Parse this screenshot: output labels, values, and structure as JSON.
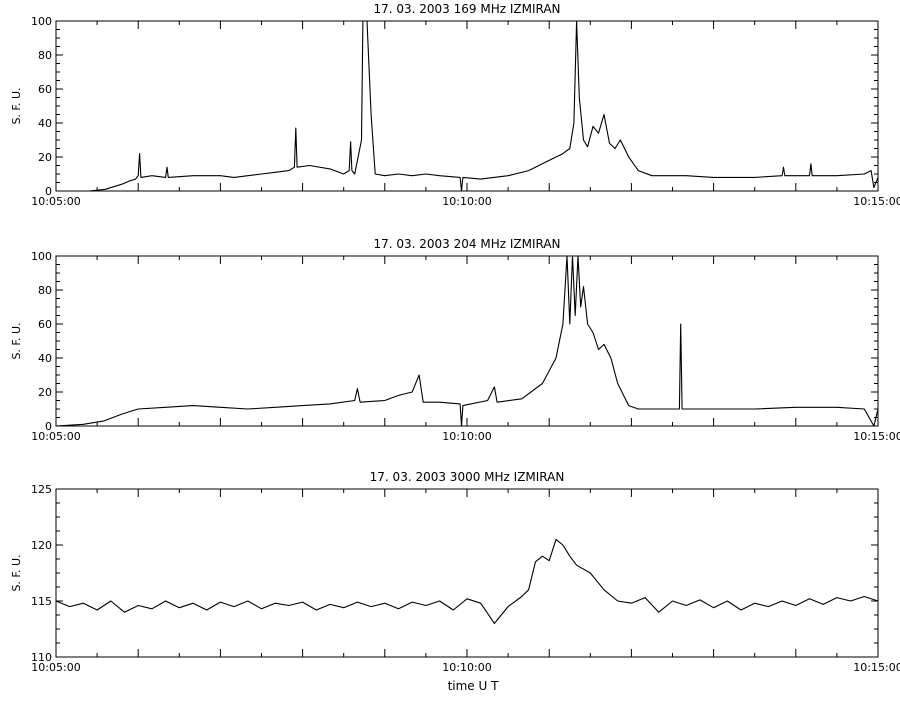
{
  "page": {
    "background": "#ffffff",
    "ink": "#000000",
    "xaxis_title": "time  U T"
  },
  "chart_data": [
    {
      "type": "line",
      "title": "17.  03.  2003    169  MHz     IZMIRAN",
      "ylabel": "S. F. U.",
      "xlabel": "",
      "x_range": [
        "10:05:00",
        "10:15:00"
      ],
      "x_ticks": [
        "10:05:00",
        "10:10:00",
        "10:15:00"
      ],
      "ylim": [
        0,
        100
      ],
      "y_ticks": [
        0,
        20,
        40,
        60,
        80,
        100
      ],
      "grid": false,
      "series": [
        {
          "points": [
            [
              "10:05:00",
              0
            ],
            [
              "10:05:24",
              0
            ],
            [
              "10:05:36",
              1
            ],
            [
              "10:05:48",
              4
            ],
            [
              "10:05:54",
              6
            ],
            [
              "10:05:58",
              7
            ],
            [
              "10:06:00",
              9
            ],
            [
              "10:06:01",
              22
            ],
            [
              "10:06:02",
              8
            ],
            [
              "10:06:10",
              9
            ],
            [
              "10:06:20",
              8
            ],
            [
              "10:06:21",
              14
            ],
            [
              "10:06:22",
              8
            ],
            [
              "10:06:40",
              9
            ],
            [
              "10:07:00",
              9
            ],
            [
              "10:07:10",
              8
            ],
            [
              "10:07:20",
              9
            ],
            [
              "10:07:30",
              10
            ],
            [
              "10:07:40",
              11
            ],
            [
              "10:07:50",
              12
            ],
            [
              "10:07:54",
              14
            ],
            [
              "10:07:55",
              37
            ],
            [
              "10:07:56",
              14
            ],
            [
              "10:08:05",
              15
            ],
            [
              "10:08:20",
              13
            ],
            [
              "10:08:30",
              10
            ],
            [
              "10:08:34",
              12
            ],
            [
              "10:08:35",
              29
            ],
            [
              "10:08:36",
              12
            ],
            [
              "10:08:38",
              10
            ],
            [
              "10:08:43",
              30
            ],
            [
              "10:08:44",
              100
            ],
            [
              "10:08:47",
              100
            ],
            [
              "10:08:50",
              45
            ],
            [
              "10:08:53",
              10
            ],
            [
              "10:09:00",
              9
            ],
            [
              "10:09:10",
              10
            ],
            [
              "10:09:20",
              9
            ],
            [
              "10:09:30",
              10
            ],
            [
              "10:09:40",
              9
            ],
            [
              "10:09:55",
              8
            ],
            [
              "10:09:56",
              0
            ],
            [
              "10:09:57",
              8
            ],
            [
              "10:10:10",
              7
            ],
            [
              "10:10:30",
              9
            ],
            [
              "10:10:45",
              12
            ],
            [
              "10:11:00",
              18
            ],
            [
              "10:11:10",
              22
            ],
            [
              "10:11:15",
              25
            ],
            [
              "10:11:18",
              40
            ],
            [
              "10:11:20",
              100
            ],
            [
              "10:11:22",
              55
            ],
            [
              "10:11:25",
              30
            ],
            [
              "10:11:28",
              26
            ],
            [
              "10:11:32",
              38
            ],
            [
              "10:11:36",
              34
            ],
            [
              "10:11:40",
              45
            ],
            [
              "10:11:44",
              28
            ],
            [
              "10:11:48",
              25
            ],
            [
              "10:11:52",
              30
            ],
            [
              "10:11:58",
              20
            ],
            [
              "10:12:05",
              12
            ],
            [
              "10:12:15",
              9
            ],
            [
              "10:12:40",
              9
            ],
            [
              "10:13:00",
              8
            ],
            [
              "10:13:30",
              8
            ],
            [
              "10:13:50",
              9
            ],
            [
              "10:13:51",
              14
            ],
            [
              "10:13:52",
              9
            ],
            [
              "10:14:10",
              9
            ],
            [
              "10:14:11",
              16
            ],
            [
              "10:14:12",
              9
            ],
            [
              "10:14:30",
              9
            ],
            [
              "10:14:50",
              10
            ],
            [
              "10:14:55",
              12
            ],
            [
              "10:14:57",
              2
            ],
            [
              "10:15:00",
              8
            ]
          ]
        }
      ]
    },
    {
      "type": "line",
      "title": "17.  03.  2003    204  MHz     IZMIRAN",
      "ylabel": "S. F. U.",
      "xlabel": "",
      "x_range": [
        "10:05:00",
        "10:15:00"
      ],
      "x_ticks": [
        "10:05:00",
        "10:10:00",
        "10:15:00"
      ],
      "ylim": [
        0,
        100
      ],
      "y_ticks": [
        0,
        20,
        40,
        60,
        80,
        100
      ],
      "grid": false,
      "series": [
        {
          "points": [
            [
              "10:05:00",
              0
            ],
            [
              "10:05:20",
              1
            ],
            [
              "10:05:35",
              3
            ],
            [
              "10:05:48",
              7
            ],
            [
              "10:06:00",
              10
            ],
            [
              "10:06:20",
              11
            ],
            [
              "10:06:40",
              12
            ],
            [
              "10:07:00",
              11
            ],
            [
              "10:07:20",
              10
            ],
            [
              "10:07:40",
              11
            ],
            [
              "10:08:00",
              12
            ],
            [
              "10:08:20",
              13
            ],
            [
              "10:08:38",
              15
            ],
            [
              "10:08:40",
              22
            ],
            [
              "10:08:42",
              14
            ],
            [
              "10:09:00",
              15
            ],
            [
              "10:09:10",
              18
            ],
            [
              "10:09:20",
              20
            ],
            [
              "10:09:25",
              30
            ],
            [
              "10:09:28",
              14
            ],
            [
              "10:09:40",
              14
            ],
            [
              "10:09:55",
              13
            ],
            [
              "10:09:56",
              0
            ],
            [
              "10:09:57",
              12
            ],
            [
              "10:10:15",
              15
            ],
            [
              "10:10:20",
              23
            ],
            [
              "10:10:22",
              14
            ],
            [
              "10:10:40",
              16
            ],
            [
              "10:10:55",
              25
            ],
            [
              "10:11:05",
              40
            ],
            [
              "10:11:10",
              60
            ],
            [
              "10:11:13",
              100
            ],
            [
              "10:11:15",
              60
            ],
            [
              "10:11:17",
              100
            ],
            [
              "10:11:19",
              65
            ],
            [
              "10:11:21",
              100
            ],
            [
              "10:11:23",
              70
            ],
            [
              "10:11:25",
              82
            ],
            [
              "10:11:28",
              60
            ],
            [
              "10:11:32",
              55
            ],
            [
              "10:11:36",
              45
            ],
            [
              "10:11:40",
              48
            ],
            [
              "10:11:45",
              40
            ],
            [
              "10:11:50",
              25
            ],
            [
              "10:11:58",
              12
            ],
            [
              "10:12:05",
              10
            ],
            [
              "10:12:20",
              10
            ],
            [
              "10:12:35",
              10
            ],
            [
              "10:12:36",
              60
            ],
            [
              "10:12:37",
              10
            ],
            [
              "10:13:00",
              10
            ],
            [
              "10:13:30",
              10
            ],
            [
              "10:14:00",
              11
            ],
            [
              "10:14:30",
              11
            ],
            [
              "10:14:50",
              10
            ],
            [
              "10:14:57",
              0
            ],
            [
              "10:15:00",
              10
            ]
          ]
        }
      ]
    },
    {
      "type": "line",
      "title": "17.  03.  2003    3000  MHz     IZMIRAN",
      "ylabel": "S. F. U.",
      "xlabel": "time  U T",
      "x_range": [
        "10:05:00",
        "10:15:00"
      ],
      "x_ticks": [
        "10:05:00",
        "10:10:00",
        "10:15:00"
      ],
      "ylim": [
        110,
        125
      ],
      "y_ticks": [
        110,
        115,
        120,
        125
      ],
      "grid": false,
      "series": [
        {
          "points": [
            [
              "10:05:00",
              115.0
            ],
            [
              "10:05:10",
              114.5
            ],
            [
              "10:05:20",
              114.8
            ],
            [
              "10:05:30",
              114.2
            ],
            [
              "10:05:40",
              115.0
            ],
            [
              "10:05:50",
              114.0
            ],
            [
              "10:06:00",
              114.6
            ],
            [
              "10:06:10",
              114.3
            ],
            [
              "10:06:20",
              115.0
            ],
            [
              "10:06:30",
              114.4
            ],
            [
              "10:06:40",
              114.8
            ],
            [
              "10:06:50",
              114.2
            ],
            [
              "10:07:00",
              114.9
            ],
            [
              "10:07:10",
              114.5
            ],
            [
              "10:07:20",
              115.0
            ],
            [
              "10:07:30",
              114.3
            ],
            [
              "10:07:40",
              114.8
            ],
            [
              "10:07:50",
              114.6
            ],
            [
              "10:08:00",
              114.9
            ],
            [
              "10:08:10",
              114.2
            ],
            [
              "10:08:20",
              114.7
            ],
            [
              "10:08:30",
              114.4
            ],
            [
              "10:08:40",
              114.9
            ],
            [
              "10:08:50",
              114.5
            ],
            [
              "10:09:00",
              114.8
            ],
            [
              "10:09:10",
              114.3
            ],
            [
              "10:09:20",
              114.9
            ],
            [
              "10:09:30",
              114.6
            ],
            [
              "10:09:40",
              115.0
            ],
            [
              "10:09:50",
              114.2
            ],
            [
              "10:10:00",
              115.2
            ],
            [
              "10:10:10",
              114.8
            ],
            [
              "10:10:20",
              113.0
            ],
            [
              "10:10:30",
              114.5
            ],
            [
              "10:10:40",
              115.4
            ],
            [
              "10:10:45",
              116.0
            ],
            [
              "10:10:50",
              118.5
            ],
            [
              "10:10:55",
              119.0
            ],
            [
              "10:11:00",
              118.6
            ],
            [
              "10:11:05",
              120.5
            ],
            [
              "10:11:10",
              120.0
            ],
            [
              "10:11:15",
              119.0
            ],
            [
              "10:11:20",
              118.2
            ],
            [
              "10:11:30",
              117.5
            ],
            [
              "10:11:40",
              116.0
            ],
            [
              "10:11:50",
              115.0
            ],
            [
              "10:12:00",
              114.8
            ],
            [
              "10:12:10",
              115.3
            ],
            [
              "10:12:20",
              114.0
            ],
            [
              "10:12:30",
              115.0
            ],
            [
              "10:12:40",
              114.6
            ],
            [
              "10:12:50",
              115.1
            ],
            [
              "10:13:00",
              114.4
            ],
            [
              "10:13:10",
              115.0
            ],
            [
              "10:13:20",
              114.2
            ],
            [
              "10:13:30",
              114.8
            ],
            [
              "10:13:40",
              114.5
            ],
            [
              "10:13:50",
              115.0
            ],
            [
              "10:14:00",
              114.6
            ],
            [
              "10:14:10",
              115.2
            ],
            [
              "10:14:20",
              114.7
            ],
            [
              "10:14:30",
              115.3
            ],
            [
              "10:14:40",
              115.0
            ],
            [
              "10:14:50",
              115.4
            ],
            [
              "10:15:00",
              115.0
            ]
          ]
        }
      ]
    }
  ]
}
